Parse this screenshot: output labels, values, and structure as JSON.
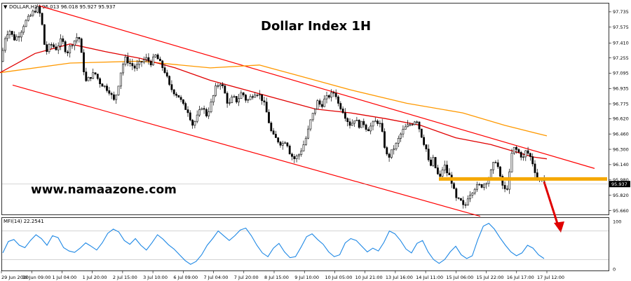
{
  "header": {
    "symbol": "DOLLAR,H1",
    "ohlc": "96.013 96.018 95.927 95.937"
  },
  "title": "Dollar Index 1H",
  "watermark": "www.namaazone.com",
  "colors": {
    "up_candle": "#000000",
    "down_candle": "#000000",
    "channel": "#ff0000",
    "ma_fast": "#e00000",
    "ma_slow": "#ff9900",
    "support": "#f5a800",
    "arrow": "#e00000",
    "mfi_line": "#1e88e5",
    "last_price_bg": "#000000"
  },
  "chart_data": [
    {
      "type": "candlestick",
      "title": "Dollar Index 1H",
      "last_price": "95.937",
      "ylim": [
        95.6,
        97.8
      ],
      "y_ticks": [
        "97.735",
        "97.575",
        "97.410",
        "97.255",
        "97.095",
        "96.935",
        "96.775",
        "96.620",
        "96.460",
        "96.300",
        "96.140",
        "95.980",
        "95.820",
        "95.660"
      ],
      "x_ticks": [
        "29 Jun 2020",
        "30 Jun 09:00",
        "1 Jul 04:00",
        "1 Jul 20:00",
        "2 Jul 15:00",
        "3 Jul 10:00",
        "6 Jul 09:00",
        "7 Jul 04:00",
        "7 Jul 20:00",
        "8 Jul 15:00",
        "9 Jul 10:00",
        "10 Jul 05:00",
        "10 Jul 21:00",
        "13 Jul 16:00",
        "14 Jul 11:00",
        "15 Jul 06:00",
        "15 Jul 22:00",
        "16 Jul 17:00",
        "17 Jul 12:00"
      ],
      "price_path": [
        [
          0,
          97.1
        ],
        [
          6,
          97.45
        ],
        [
          13,
          97.55
        ],
        [
          20,
          97.45
        ],
        [
          28,
          97.5
        ],
        [
          35,
          97.62
        ],
        [
          42,
          97.68
        ],
        [
          48,
          97.74
        ],
        [
          55,
          97.78
        ],
        [
          60,
          97.6
        ],
        [
          65,
          97.3
        ],
        [
          72,
          97.4
        ],
        [
          80,
          97.35
        ],
        [
          88,
          97.45
        ],
        [
          95,
          97.3
        ],
        [
          102,
          97.4
        ],
        [
          108,
          97.45
        ],
        [
          112,
          97.5
        ],
        [
          118,
          97.2
        ],
        [
          122,
          97.0
        ],
        [
          128,
          97.05
        ],
        [
          135,
          97.1
        ],
        [
          142,
          97.0
        ],
        [
          150,
          96.95
        ],
        [
          157,
          96.9
        ],
        [
          162,
          96.8
        ],
        [
          167,
          96.9
        ],
        [
          172,
          97.1
        ],
        [
          178,
          97.25
        ],
        [
          185,
          97.2
        ],
        [
          192,
          97.15
        ],
        [
          200,
          97.2
        ],
        [
          208,
          97.25
        ],
        [
          215,
          97.2
        ],
        [
          222,
          97.28
        ],
        [
          230,
          97.18
        ],
        [
          236,
          97.1
        ],
        [
          242,
          96.95
        ],
        [
          248,
          96.9
        ],
        [
          255,
          96.85
        ],
        [
          262,
          96.75
        ],
        [
          268,
          96.7
        ],
        [
          275,
          96.55
        ],
        [
          282,
          96.65
        ],
        [
          288,
          96.75
        ],
        [
          295,
          96.65
        ],
        [
          302,
          96.8
        ],
        [
          308,
          96.95
        ],
        [
          315,
          97.0
        ],
        [
          320,
          96.9
        ],
        [
          326,
          96.75
        ],
        [
          332,
          96.85
        ],
        [
          338,
          96.8
        ],
        [
          345,
          96.9
        ],
        [
          352,
          96.8
        ],
        [
          358,
          96.85
        ],
        [
          365,
          96.9
        ],
        [
          372,
          96.85
        ],
        [
          378,
          96.75
        ],
        [
          383,
          96.6
        ],
        [
          388,
          96.45
        ],
        [
          395,
          96.4
        ],
        [
          402,
          96.35
        ],
        [
          408,
          96.4
        ],
        [
          414,
          96.25
        ],
        [
          420,
          96.2
        ],
        [
          427,
          96.25
        ],
        [
          433,
          96.35
        ],
        [
          438,
          96.45
        ],
        [
          443,
          96.6
        ],
        [
          448,
          96.7
        ],
        [
          453,
          96.8
        ],
        [
          458,
          96.75
        ],
        [
          463,
          96.82
        ],
        [
          468,
          96.85
        ],
        [
          474,
          96.88
        ],
        [
          478,
          96.9
        ],
        [
          482,
          96.78
        ],
        [
          488,
          96.72
        ],
        [
          494,
          96.62
        ],
        [
          500,
          96.55
        ],
        [
          506,
          96.62
        ],
        [
          512,
          96.55
        ],
        [
          518,
          96.58
        ],
        [
          524,
          96.5
        ],
        [
          530,
          96.55
        ],
        [
          537,
          96.6
        ],
        [
          543,
          96.55
        ],
        [
          548,
          96.35
        ],
        [
          553,
          96.2
        ],
        [
          559,
          96.28
        ],
        [
          565,
          96.35
        ],
        [
          571,
          96.45
        ],
        [
          577,
          96.52
        ],
        [
          583,
          96.55
        ],
        [
          589,
          96.58
        ],
        [
          594,
          96.62
        ],
        [
          598,
          96.52
        ],
        [
          603,
          96.4
        ],
        [
          608,
          96.3
        ],
        [
          613,
          96.1
        ],
        [
          618,
          96.2
        ],
        [
          623,
          96.05
        ],
        [
          628,
          96.0
        ],
        [
          633,
          96.15
        ],
        [
          638,
          96.05
        ],
        [
          643,
          96.0
        ],
        [
          648,
          95.85
        ],
        [
          652,
          95.75
        ],
        [
          656,
          95.78
        ],
        [
          660,
          95.7
        ],
        [
          664,
          95.72
        ],
        [
          668,
          95.82
        ],
        [
          672,
          95.85
        ],
        [
          677,
          95.9
        ],
        [
          682,
          95.92
        ],
        [
          687,
          95.92
        ],
        [
          692,
          95.95
        ],
        [
          697,
          96.0
        ],
        [
          702,
          96.1
        ],
        [
          706,
          96.2
        ],
        [
          710,
          96.12
        ],
        [
          714,
          95.98
        ],
        [
          718,
          95.9
        ],
        [
          722,
          95.85
        ],
        [
          726,
          96.0
        ],
        [
          730,
          96.25
        ],
        [
          734,
          96.32
        ],
        [
          738,
          96.28
        ],
        [
          742,
          96.25
        ],
        [
          746,
          96.2
        ],
        [
          750,
          96.28
        ],
        [
          754,
          96.25
        ],
        [
          758,
          96.2
        ],
        [
          762,
          96.1
        ],
        [
          766,
          96.0
        ],
        [
          770,
          95.97
        ],
        [
          774,
          96.01
        ],
        [
          778,
          95.94
        ]
      ],
      "series": [
        {
          "name": "MA slow",
          "color": "#ff9900",
          "points": [
            [
              0,
              97.1
            ],
            [
              100,
              97.2
            ],
            [
              200,
              97.22
            ],
            [
              300,
              97.15
            ],
            [
              370,
              97.18
            ],
            [
              420,
              97.08
            ],
            [
              500,
              96.92
            ],
            [
              580,
              96.78
            ],
            [
              660,
              96.68
            ],
            [
              720,
              96.55
            ],
            [
              780,
              96.44
            ]
          ]
        },
        {
          "name": "MA fast",
          "color": "#e00000",
          "points": [
            [
              0,
              97.1
            ],
            [
              50,
              97.3
            ],
            [
              100,
              97.4
            ],
            [
              150,
              97.32
            ],
            [
              200,
              97.25
            ],
            [
              250,
              97.15
            ],
            [
              300,
              97.02
            ],
            [
              350,
              96.92
            ],
            [
              400,
              96.82
            ],
            [
              450,
              96.72
            ],
            [
              500,
              96.68
            ],
            [
              550,
              96.62
            ],
            [
              600,
              96.55
            ],
            [
              650,
              96.42
            ],
            [
              700,
              96.35
            ],
            [
              760,
              96.22
            ],
            [
              780,
              96.2
            ]
          ]
        }
      ],
      "channel": {
        "upper": [
          [
            55,
            97.8
          ],
          [
            848,
            96.1
          ]
        ],
        "lower": [
          [
            18,
            96.97
          ],
          [
            685,
            95.6
          ]
        ]
      },
      "support_level": 95.99
    },
    {
      "type": "line",
      "indicator": "MFI",
      "label": "MFI(14) 22.2541",
      "ylim": [
        0,
        100
      ],
      "y_ticks": [
        "100",
        "0"
      ],
      "levels": [
        80,
        20
      ],
      "values": [
        34,
        58,
        62,
        50,
        45,
        60,
        72,
        64,
        50,
        70,
        66,
        45,
        38,
        35,
        44,
        55,
        48,
        40,
        55,
        75,
        84,
        78,
        60,
        52,
        64,
        50,
        40,
        55,
        72,
        63,
        51,
        42,
        30,
        18,
        10,
        16,
        30,
        50,
        64,
        80,
        70,
        60,
        70,
        82,
        86,
        70,
        50,
        34,
        26,
        44,
        54,
        36,
        24,
        26,
        46,
        68,
        74,
        62,
        52,
        36,
        26,
        30,
        55,
        64,
        60,
        48,
        36,
        44,
        38,
        56,
        80,
        74,
        60,
        42,
        34,
        54,
        60,
        36,
        20,
        12,
        20,
        36,
        48,
        30,
        22,
        28,
        62,
        90,
        96,
        84,
        66,
        50,
        36,
        28,
        34,
        50,
        44,
        30,
        22
      ]
    }
  ]
}
